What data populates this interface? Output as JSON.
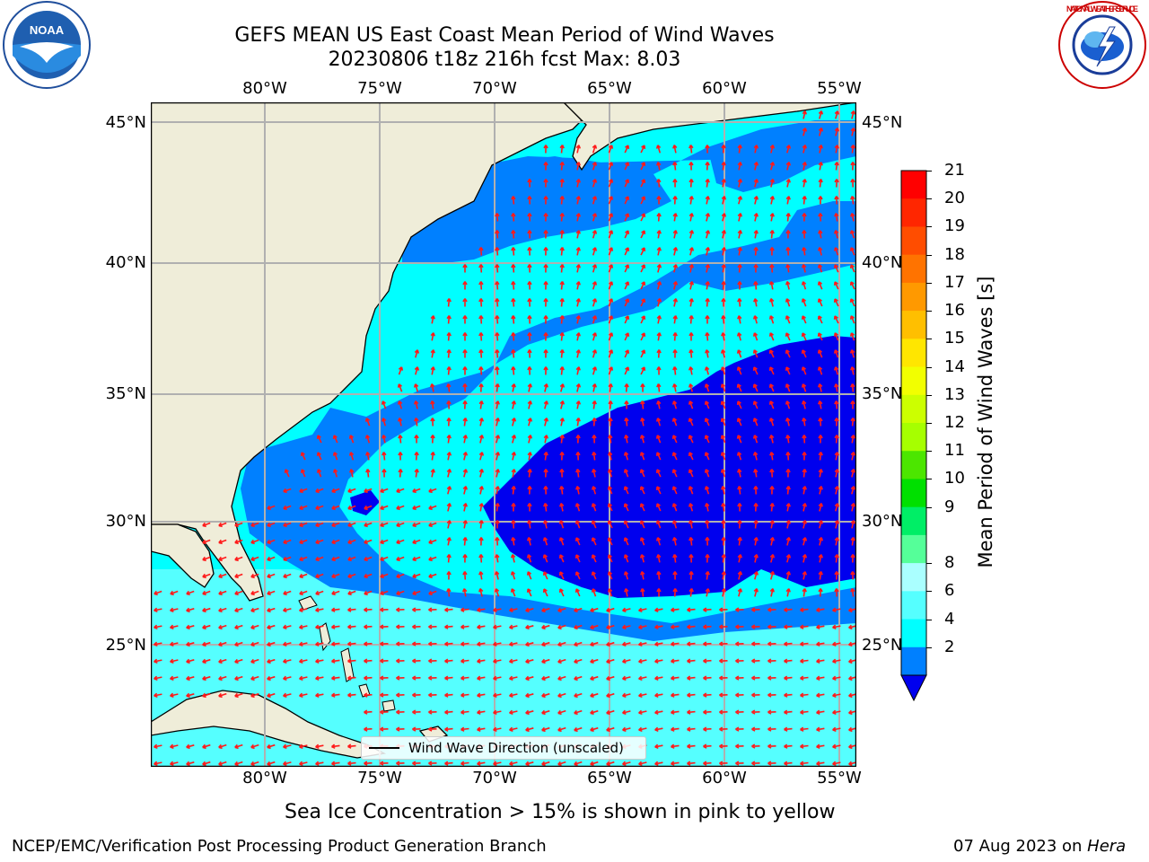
{
  "title": {
    "line1": "GEFS MEAN US East Coast Mean Period of Wind Waves",
    "line2": "20230806 t18z 216h fcst   Max: 8.03"
  },
  "logos": {
    "left": {
      "icon": "noaa-logo-icon",
      "text": "NOAA"
    },
    "right": {
      "icon": "nws-logo-icon",
      "text": "NATIONAL WEATHER SERVICE"
    }
  },
  "map": {
    "lon_range": [
      -85,
      -54.5
    ],
    "lat_range": [
      20.5,
      46
    ],
    "lon_ticks": [
      "80°W",
      "75°W",
      "70°W",
      "65°W",
      "60°W",
      "55°W"
    ],
    "lat_ticks": [
      "45°N",
      "40°N",
      "35°N",
      "30°N",
      "25°N"
    ],
    "gridlines": true,
    "land_color": "#efedd9",
    "arrow_color": "#ff1a1a"
  },
  "legend": {
    "label": "Wind Wave Direction (unscaled)"
  },
  "colorbar": {
    "label": "Mean Period of Wind Waves [s]",
    "ticks": [
      "21",
      "20",
      "19",
      "18",
      "17",
      "16",
      "15",
      "14",
      "13",
      "12",
      "11",
      "10",
      "9",
      "8",
      "6",
      "4",
      "2"
    ],
    "colors": [
      "#ff0000",
      "#ff2600",
      "#ff4d00",
      "#ff7300",
      "#ff9900",
      "#ffbf00",
      "#ffe600",
      "#f2ff00",
      "#ccff00",
      "#a6ff00",
      "#4ce600",
      "#00e000",
      "#00ee66",
      "#55ff99",
      "#aaffff",
      "#55ffff",
      "#00ffff",
      "#0080ff",
      "#0000ee"
    ]
  },
  "footer": {
    "note": "Sea Ice Concentration > 15% is shown in pink to yellow",
    "credit": "NCEP/EMC/Verification Post Processing Product Generation Branch",
    "date": "07 Aug 2023 on ",
    "host": "Hera"
  }
}
